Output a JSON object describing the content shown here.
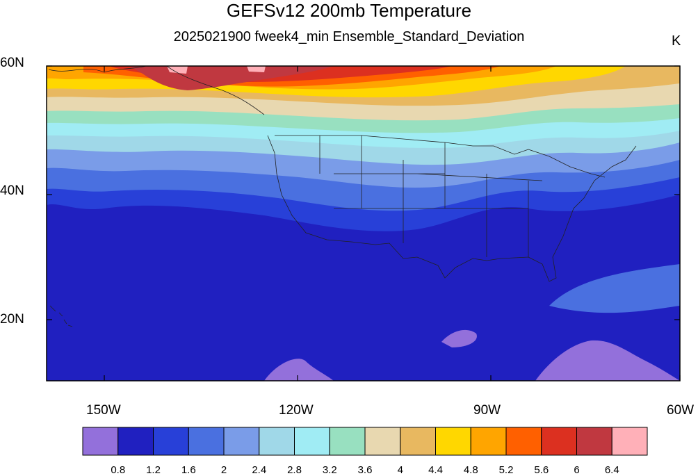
{
  "title": "GEFSv12 200mb Temperature",
  "subtitle": "2025021900 fweek4_min Ensemble_Standard_Deviation",
  "units": "K",
  "lat_labels": [
    "60N",
    "40N",
    "20N"
  ],
  "lon_labels": [
    "150W",
    "120W",
    "90W",
    "60W"
  ],
  "colorbar": {
    "colors": [
      "#9370DB",
      "#2020C0",
      "#2840D8",
      "#4A70E0",
      "#7A9CE8",
      "#A0D8E8",
      "#A0ECF4",
      "#98E0C0",
      "#E8D8B0",
      "#E8B860",
      "#FFD700",
      "#FFA500",
      "#FF6000",
      "#DC3020",
      "#C03840",
      "#FFB0B8"
    ],
    "labels": [
      "0.8",
      "1.2",
      "1.6",
      "2",
      "2.4",
      "2.8",
      "3.2",
      "3.6",
      "4",
      "4.4",
      "4.8",
      "5.2",
      "5.6",
      "6",
      "6.4"
    ]
  }
}
